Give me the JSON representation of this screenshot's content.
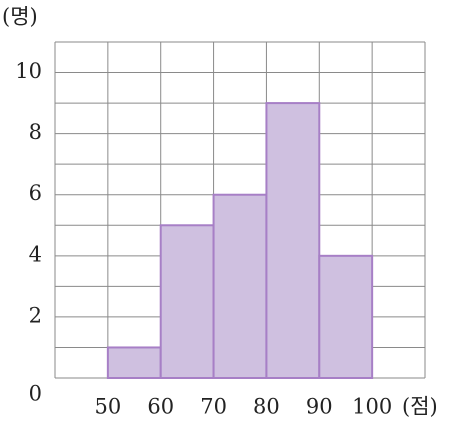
{
  "chart_data": {
    "type": "histogram",
    "y_label": "(명)",
    "x_label": "(점)",
    "bins": [
      50,
      60,
      70,
      80,
      90,
      100
    ],
    "values": [
      1,
      5,
      6,
      9,
      4
    ],
    "color": "#cfc0e0",
    "edge_color": "#a77fc6",
    "xlim": [
      40,
      110
    ],
    "xticks": [
      50,
      60,
      70,
      80,
      90,
      100
    ],
    "minor_xticks": [
      40,
      110
    ],
    "ylim": [
      0,
      11
    ],
    "yticks": [
      0,
      2,
      4,
      6,
      8,
      10
    ],
    "minor_yticks": [
      1,
      3,
      5,
      7,
      9,
      11
    ],
    "grid": true
  }
}
